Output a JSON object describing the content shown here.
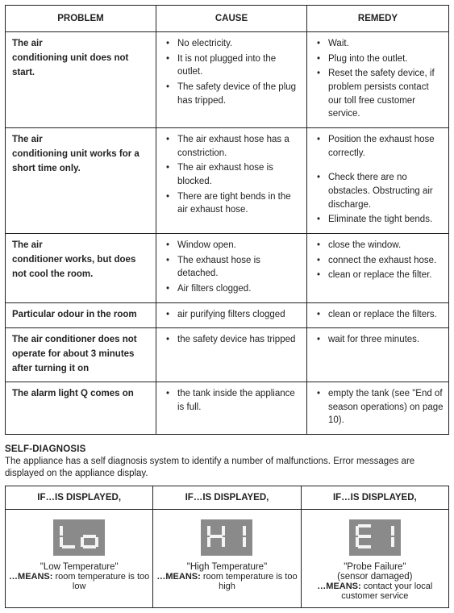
{
  "troubleshoot": {
    "headers": [
      "PROBLEM",
      "CAUSE",
      "REMEDY"
    ],
    "rows": [
      {
        "problem": "The air\nconditioning unit does not start.",
        "causes": [
          "No electricity.",
          "It is not plugged into the outlet.",
          "The safety device of the plug has tripped."
        ],
        "remedies": [
          "Wait.",
          "Plug into the outlet.",
          "Reset the safety device, if problem persists contact our toll free customer service."
        ]
      },
      {
        "problem": "The air\nconditioning unit works for a short time only.",
        "causes": [
          "The air exhaust hose has a constriction.",
          "The air exhaust hose is blocked.",
          "There are  tight bends in the air exhaust hose."
        ],
        "remedies": [
          "Position the exhaust hose correctly.",
          "Check there are no obstacles. Obstructing air discharge.",
          "Eliminate the tight bends."
        ],
        "remedySpacer": true
      },
      {
        "problem": "The air\nconditioner works, but does not cool the room.",
        "causes": [
          "Window open.",
          "The exhaust hose is detached.",
          "Air filters clogged."
        ],
        "remedies": [
          "close the window.",
          "connect the exhaust hose.",
          "clean or replace the filter."
        ]
      },
      {
        "problem": "Particular odour in the room",
        "causes": [
          "air purifying filters clogged"
        ],
        "remedies": [
          "clean or replace the filters."
        ]
      },
      {
        "problem": "The air conditioner does not operate for about 3 minutes after turning it on",
        "causes": [
          "the safety device has tripped"
        ],
        "remedies": [
          "wait for three minutes."
        ]
      },
      {
        "problem": "The alarm light Q comes on",
        "causes": [
          "the tank inside the appliance is full."
        ],
        "remedies": [
          "empty the tank (see \"End of season operations) on page  10)."
        ]
      }
    ]
  },
  "selfDiag": {
    "title": "SELF-DIAGNOSIS",
    "desc": "The appliance has a self diagnosis system to identify a number of malfunctions. Error messages are displayed on the appliance display.",
    "header": "IF…IS DISPLAYED,",
    "cells": [
      {
        "code": "Lo",
        "segA": "L",
        "segB": "o",
        "quote": "\"Low Temperature\"",
        "sub": "",
        "means": "room temperature is too low"
      },
      {
        "code": "HI",
        "segA": "H",
        "segB": "I",
        "quote": "\"High Temperature\"",
        "sub": "",
        "means": "room temperature is too high"
      },
      {
        "code": "E1",
        "segA": "E",
        "segB": "1",
        "quote": "\"Probe Failure\"",
        "sub": "(sensor damaged)",
        "means": "contact your local customer service"
      }
    ],
    "meansLabel": "…MEANS:"
  },
  "colors": {
    "lcd_bg": "#8a8a8a",
    "seg_fg": "#f4f4f4",
    "border": "#222222",
    "text": "#222222",
    "page_bg": "#ffffff"
  }
}
